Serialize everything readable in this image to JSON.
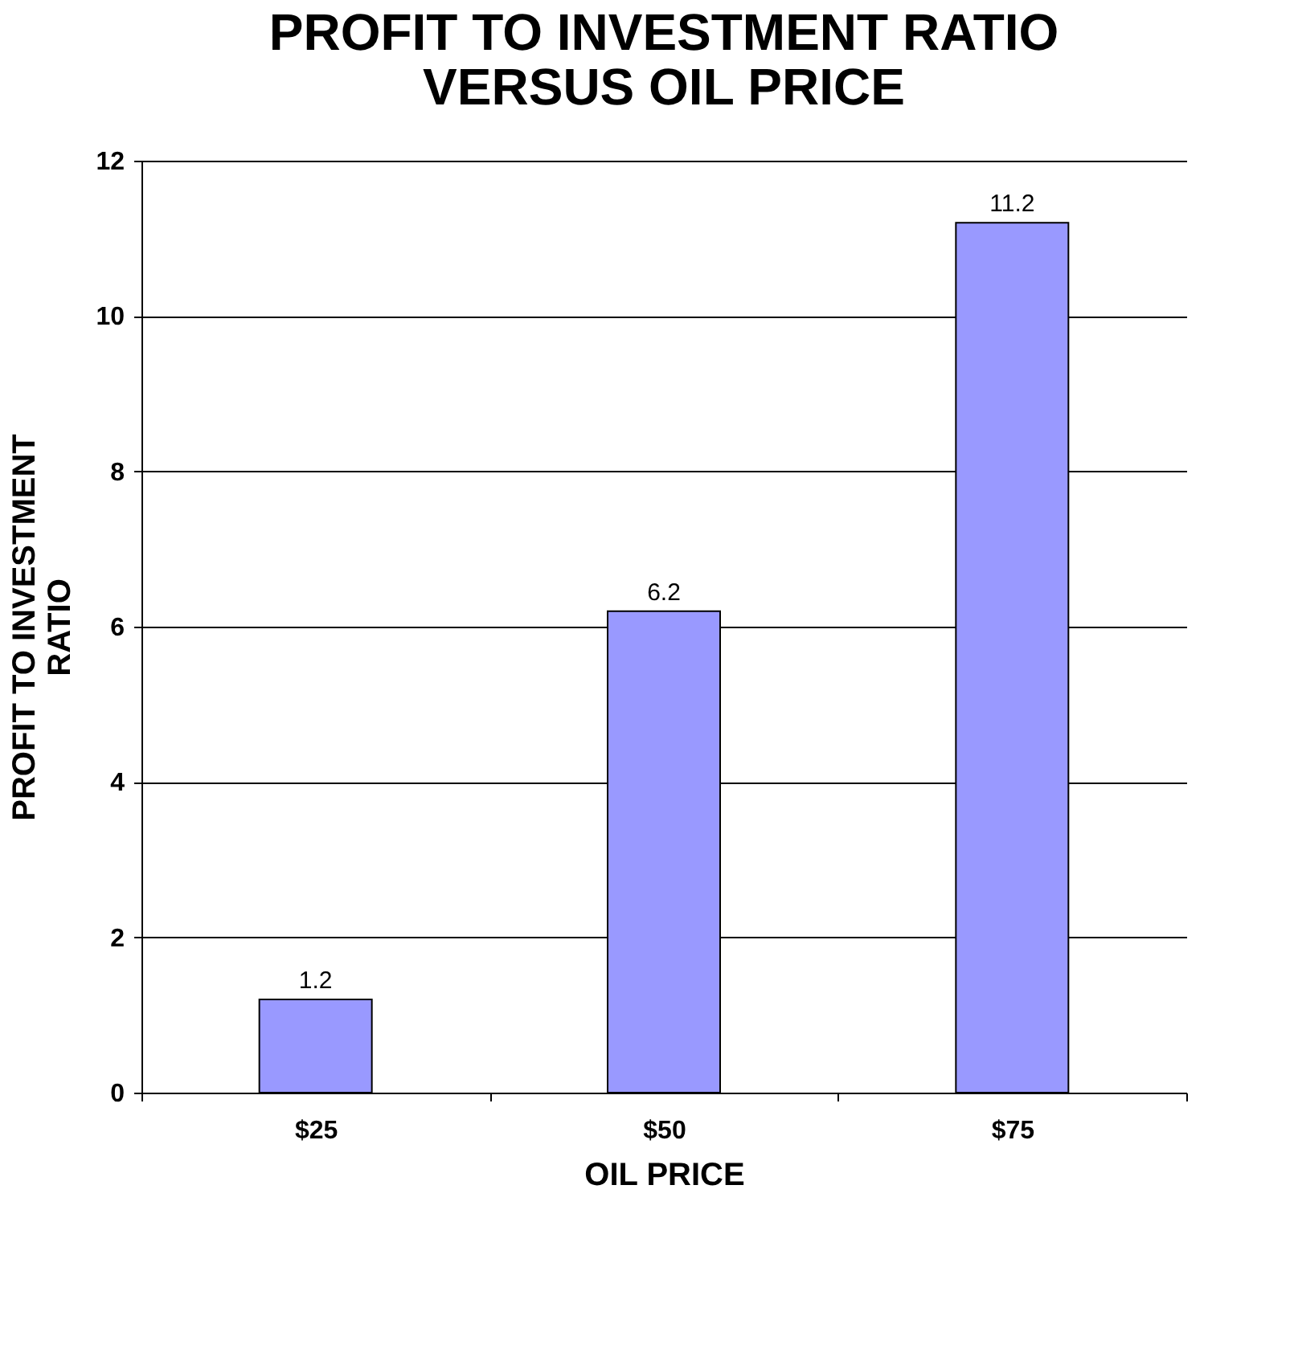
{
  "chart_data": {
    "type": "bar",
    "title": "PROFIT TO INVESTMENT RATIO\nVERSUS OIL PRICE",
    "xlabel": "OIL PRICE",
    "ylabel": "PROFIT TO INVESTMENT\nRATIO",
    "categories": [
      "$25",
      "$50",
      "$75"
    ],
    "values": [
      1.2,
      6.2,
      11.2
    ],
    "color": "#9999ff",
    "ylim": [
      0,
      12
    ],
    "yticks": [
      0,
      2,
      4,
      6,
      8,
      10,
      12
    ],
    "grid": "y",
    "data_labels": true
  }
}
